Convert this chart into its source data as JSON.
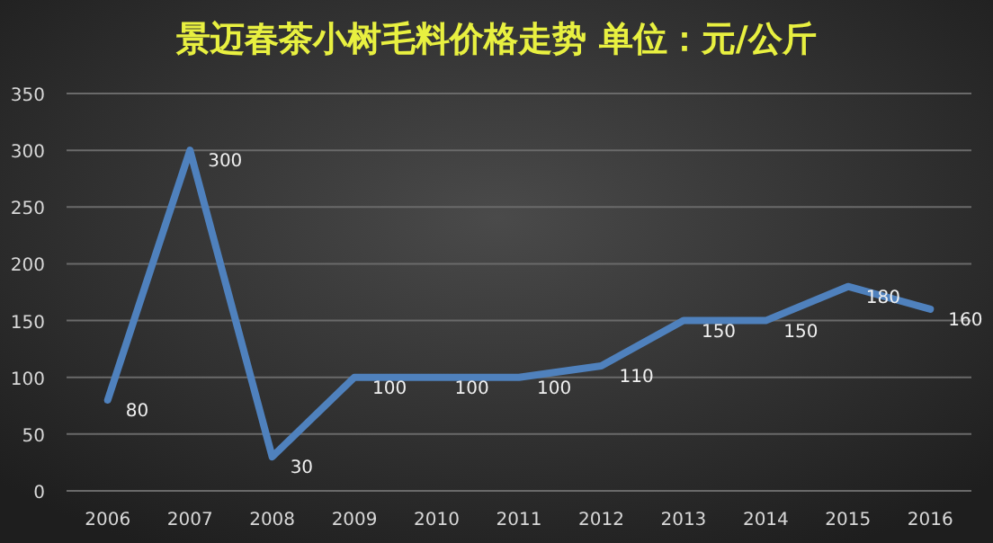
{
  "chart_data": {
    "type": "line",
    "title": "景迈春茶小树毛料价格走势 单位：元/公斤",
    "categories": [
      "2006",
      "2007",
      "2008",
      "2009",
      "2010",
      "2011",
      "2012",
      "2013",
      "2014",
      "2015",
      "2016"
    ],
    "series": [
      {
        "color": "#4f81bd",
        "values": [
          80,
          300,
          30,
          100,
          100,
          100,
          110,
          150,
          150,
          180,
          160
        ]
      }
    ],
    "ylim": [
      0,
      350
    ],
    "yticks": [
      0,
      50,
      100,
      150,
      200,
      250,
      300,
      350
    ],
    "grid": "y",
    "data_labels": true,
    "marker": "none",
    "line_style": "solid"
  }
}
